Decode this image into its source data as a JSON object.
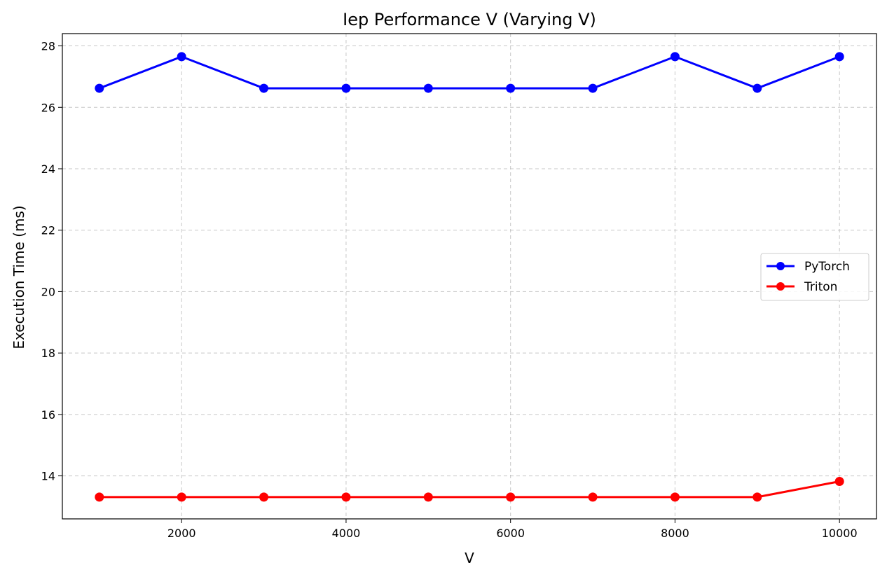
{
  "chart_data": {
    "type": "line",
    "title": "Iep Performance V (Varying V)",
    "xlabel": "V",
    "ylabel": "Execution Time (ms)",
    "x": [
      1000,
      2000,
      3000,
      4000,
      5000,
      6000,
      7000,
      8000,
      9000,
      10000
    ],
    "series": [
      {
        "name": "PyTorch",
        "color": "#0000ff",
        "values": [
          26.62,
          27.65,
          26.62,
          26.62,
          26.62,
          26.62,
          26.62,
          27.65,
          26.62,
          27.65
        ]
      },
      {
        "name": "Triton",
        "color": "#ff0000",
        "values": [
          13.31,
          13.31,
          13.31,
          13.31,
          13.31,
          13.31,
          13.31,
          13.31,
          13.31,
          13.82
        ]
      }
    ],
    "xlim": [
      550,
      10450
    ],
    "ylim": [
      12.6,
      28.4
    ],
    "xticks": [
      "2000",
      "4000",
      "6000",
      "8000",
      "10000"
    ],
    "yticks": [
      "14",
      "16",
      "18",
      "20",
      "22",
      "24",
      "26",
      "28"
    ],
    "grid": true,
    "legend_position": "center-right"
  }
}
